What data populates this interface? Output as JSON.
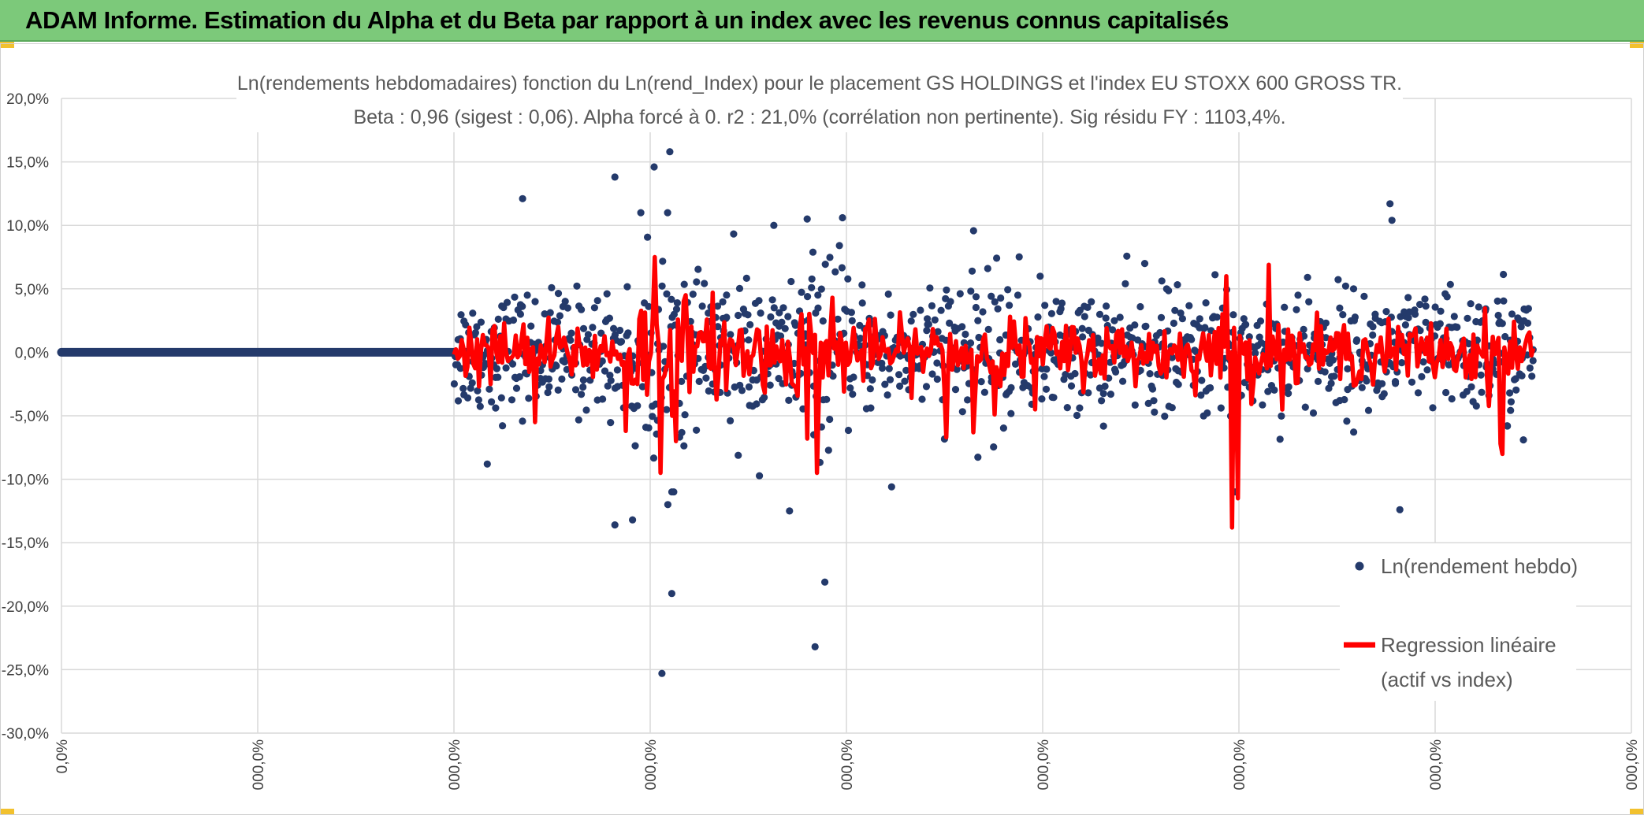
{
  "header": {
    "title": "ADAM Informe. Estimation du Alpha et du Beta par rapport à un index avec les revenus connus capitalisés"
  },
  "colors": {
    "banner": "#7cc97a",
    "points": "#243a6b",
    "regression": "#ff0000",
    "grid": "#d9d9d9"
  },
  "chart_data": {
    "type": "scatter",
    "title_line1": "Ln(rendements hebdomadaires) fonction du Ln(rend_Index) pour le placement GS HOLDINGS et l'index EU STOXX 600 GROSS TR.",
    "title_line2": "Beta : 0,96 (sigest : 0,06). Alpha forcé à 0. r2 : 21,0% (corrélation non pertinente). Sig résidu FY : 1103,4%.",
    "ylim": [
      -30,
      20
    ],
    "y_step": 5,
    "y_tick_labels": [
      "20,0%",
      "15,0%",
      "10,0%",
      "5,0%",
      "0,0%",
      "-5,0%",
      "-10,0%",
      "-15,0%",
      "-20,0%",
      "-25,0%",
      "-30,0%"
    ],
    "x_tick_labels": [
      "0,0%",
      "000,0%",
      "000,0%",
      "000,0%",
      "000,0%",
      "000,0%",
      "000,0%",
      "000,0%",
      "000,0%"
    ],
    "xlim": [
      0,
      8
    ],
    "flat_segment": {
      "x_start": 0,
      "x_end": 2.0,
      "y": 0
    },
    "data_range": {
      "x_start": 2.0,
      "x_end": 7.5
    },
    "series": [
      {
        "name": "Ln(rendement hebdo)",
        "kind": "points",
        "count": 1150,
        "spread_pct": 2.4,
        "outliers": [
          {
            "x": 3.06,
            "y": -25.3
          },
          {
            "x": 3.11,
            "y": -19.0
          },
          {
            "x": 3.84,
            "y": -23.2
          },
          {
            "x": 3.89,
            "y": -18.1
          },
          {
            "x": 3.02,
            "y": 14.6
          },
          {
            "x": 3.1,
            "y": 15.8
          },
          {
            "x": 2.82,
            "y": 13.8
          },
          {
            "x": 2.35,
            "y": 12.1
          },
          {
            "x": 6.77,
            "y": 11.7
          },
          {
            "x": 6.78,
            "y": 10.4
          },
          {
            "x": 6.82,
            "y": -12.4
          },
          {
            "x": 5.98,
            "y": -11.0
          },
          {
            "x": 2.82,
            "y": -13.6
          },
          {
            "x": 2.91,
            "y": -13.2
          },
          {
            "x": 3.09,
            "y": -12.0
          },
          {
            "x": 3.8,
            "y": 10.5
          },
          {
            "x": 3.98,
            "y": 10.6
          },
          {
            "x": 3.63,
            "y": 10.0
          },
          {
            "x": 2.17,
            "y": -8.8
          },
          {
            "x": 4.23,
            "y": -10.6
          },
          {
            "x": 3.71,
            "y": -12.5
          },
          {
            "x": 7.45,
            "y": -6.9
          },
          {
            "x": 6.73,
            "y": -3.5
          },
          {
            "x": 5.52,
            "y": 7.0
          },
          {
            "x": 6.35,
            "y": 5.9
          },
          {
            "x": 4.72,
            "y": 6.6
          }
        ]
      },
      {
        "name": "Regression linéaire (actif vs index)",
        "kind": "line",
        "beta": 0.96,
        "spread_pct": 1.2,
        "spikes": [
          {
            "x": 5.97,
            "y": -13.8
          },
          {
            "x": 5.99,
            "y": -11.5
          },
          {
            "x": 3.05,
            "y": -9.5
          },
          {
            "x": 3.02,
            "y": 7.5
          },
          {
            "x": 3.13,
            "y": -7.0
          },
          {
            "x": 3.85,
            "y": -9.5
          },
          {
            "x": 7.34,
            "y": -8.0
          },
          {
            "x": 7.33,
            "y": -7.2
          },
          {
            "x": 2.88,
            "y": -6.2
          },
          {
            "x": 3.8,
            "y": -6.8
          },
          {
            "x": 6.15,
            "y": 6.9
          },
          {
            "x": 5.94,
            "y": 6.0
          },
          {
            "x": 4.51,
            "y": -6.7
          },
          {
            "x": 4.65,
            "y": -6.3
          },
          {
            "x": 3.32,
            "y": 4.7
          },
          {
            "x": 4.96,
            "y": -4.5
          },
          {
            "x": 3.93,
            "y": 4.3
          },
          {
            "x": 2.41,
            "y": -5.5
          }
        ]
      }
    ],
    "legend": {
      "position": "right",
      "points_label": "Ln(rendement hebdo)",
      "line_label_1": "Regression linéaire",
      "line_label_2": "(actif vs index)"
    }
  }
}
